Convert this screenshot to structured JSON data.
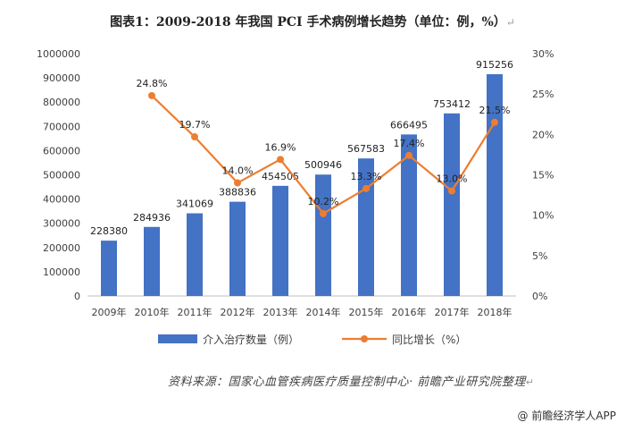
{
  "title": "图表1：2009-2018 年我国 PCI 手术病例增长趋势（单位：例，%）",
  "title_mark": "↵",
  "source": "资料来源：国家心血管疾病医疗质量控制中心· 前瞻产业研究院整理",
  "source_mark": "↵",
  "watermark": "@ 前瞻经济学人APP",
  "colors": {
    "bar": "#4472C4",
    "line": "#ED7D31",
    "axis": "#BFBFBF",
    "text": "#404040"
  },
  "chart_data": {
    "type": "bar",
    "categories": [
      "2009年",
      "2010年",
      "2011年",
      "2012年",
      "2013年",
      "2014年",
      "2015年",
      "2016年",
      "2017年",
      "2018年"
    ],
    "series": [
      {
        "name": "介入治疗数量（例）",
        "type": "bar",
        "axis": "left",
        "values": [
          228380,
          284936,
          341069,
          388836,
          454505,
          500946,
          567583,
          666495,
          753412,
          915256
        ],
        "labels": [
          "228380",
          "284936",
          "341069",
          "388836",
          "454505",
          "500946",
          "567583",
          "666495",
          "753412",
          "915256"
        ]
      },
      {
        "name": "同比增长（%）",
        "type": "line",
        "axis": "right",
        "values": [
          null,
          24.8,
          19.7,
          14.0,
          16.9,
          10.2,
          13.3,
          17.4,
          13.0,
          21.5
        ],
        "labels": [
          "",
          "24.8%",
          "19.7%",
          "14.0%",
          "16.9%",
          "10.2%",
          "13.3%",
          "17.4%",
          "13.0%",
          "21.5%"
        ]
      }
    ],
    "left_axis": {
      "min": 0,
      "max": 1000000,
      "step": 100000,
      "ticks": [
        "0",
        "100000",
        "200000",
        "300000",
        "400000",
        "500000",
        "600000",
        "700000",
        "800000",
        "900000",
        "1000000"
      ]
    },
    "right_axis": {
      "min": 0,
      "max": 30,
      "step": 5,
      "ticks": [
        "0%",
        "5%",
        "10%",
        "15%",
        "20%",
        "25%",
        "30%"
      ]
    },
    "legend": {
      "position": "bottom",
      "items": [
        "介入治疗数量（例）",
        "同比增长（%）"
      ]
    }
  }
}
